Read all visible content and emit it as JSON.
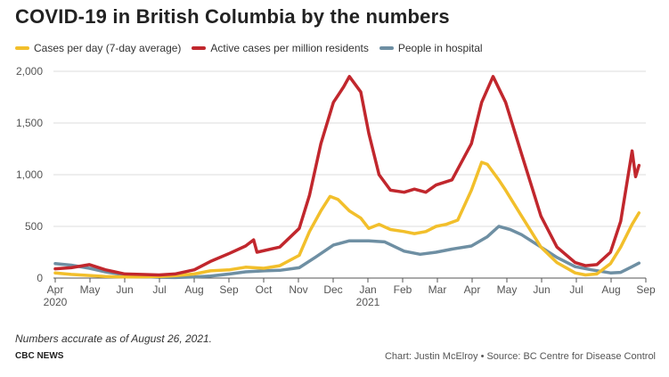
{
  "title": "COVID-19 in British Columbia by the numbers",
  "note": "Numbers accurate as of August 26, 2021.",
  "brand": "CBC NEWS",
  "credit": "Chart: Justin McElroy • Source: BC Centre for Disease Control",
  "colors": {
    "cases": "#f2bf2b",
    "active": "#c1272d",
    "hospital": "#6e8fa3",
    "grid": "#dddddd",
    "axis": "#555555"
  },
  "chart_data": {
    "type": "line",
    "x_tick_labels": [
      "Apr",
      "May",
      "Jun",
      "Jul",
      "Aug",
      "Sep",
      "Oct",
      "Nov",
      "Dec",
      "Jan",
      "Feb",
      "Mar",
      "Apr",
      "May",
      "Jun",
      "Jul",
      "Aug",
      "Sep"
    ],
    "year_labels": [
      {
        "label": "2020",
        "at": "Apr"
      },
      {
        "label": "2021",
        "at": "Jan"
      }
    ],
    "y_tick_labels": [
      "0",
      "500",
      "1,000",
      "1,500",
      "2,000"
    ],
    "ylim": [
      0,
      2000
    ],
    "xlim": [
      "2020-04-01",
      "2021-09-01"
    ],
    "grid": true,
    "legend_position": "top",
    "series": [
      {
        "name": "Cases per day (7-day average)",
        "color": "#f2bf2b",
        "points": [
          [
            "2020-04-01",
            50
          ],
          [
            "2020-04-15",
            35
          ],
          [
            "2020-05-01",
            25
          ],
          [
            "2020-05-15",
            15
          ],
          [
            "2020-06-01",
            10
          ],
          [
            "2020-06-15",
            12
          ],
          [
            "2020-07-01",
            15
          ],
          [
            "2020-07-15",
            22
          ],
          [
            "2020-08-01",
            40
          ],
          [
            "2020-08-15",
            70
          ],
          [
            "2020-09-01",
            80
          ],
          [
            "2020-09-15",
            105
          ],
          [
            "2020-10-01",
            95
          ],
          [
            "2020-10-15",
            120
          ],
          [
            "2020-11-01",
            220
          ],
          [
            "2020-11-10",
            450
          ],
          [
            "2020-11-20",
            650
          ],
          [
            "2020-11-28",
            790
          ],
          [
            "2020-12-05",
            760
          ],
          [
            "2020-12-15",
            650
          ],
          [
            "2020-12-25",
            580
          ],
          [
            "2021-01-01",
            480
          ],
          [
            "2021-01-10",
            520
          ],
          [
            "2021-01-20",
            470
          ],
          [
            "2021-02-01",
            450
          ],
          [
            "2021-02-10",
            430
          ],
          [
            "2021-02-20",
            450
          ],
          [
            "2021-03-01",
            500
          ],
          [
            "2021-03-10",
            520
          ],
          [
            "2021-03-20",
            560
          ],
          [
            "2021-04-01",
            850
          ],
          [
            "2021-04-10",
            1120
          ],
          [
            "2021-04-15",
            1100
          ],
          [
            "2021-04-25",
            950
          ],
          [
            "2021-05-01",
            850
          ],
          [
            "2021-05-15",
            600
          ],
          [
            "2021-06-01",
            300
          ],
          [
            "2021-06-15",
            150
          ],
          [
            "2021-07-01",
            50
          ],
          [
            "2021-07-10",
            30
          ],
          [
            "2021-07-20",
            40
          ],
          [
            "2021-08-01",
            140
          ],
          [
            "2021-08-10",
            300
          ],
          [
            "2021-08-20",
            520
          ],
          [
            "2021-08-26",
            630
          ]
        ]
      },
      {
        "name": "Active cases per million residents",
        "color": "#c1272d",
        "points": [
          [
            "2020-04-01",
            90
          ],
          [
            "2020-04-15",
            100
          ],
          [
            "2020-05-01",
            130
          ],
          [
            "2020-05-15",
            80
          ],
          [
            "2020-06-01",
            40
          ],
          [
            "2020-06-15",
            35
          ],
          [
            "2020-07-01",
            30
          ],
          [
            "2020-07-15",
            40
          ],
          [
            "2020-08-01",
            80
          ],
          [
            "2020-08-15",
            160
          ],
          [
            "2020-09-01",
            240
          ],
          [
            "2020-09-15",
            310
          ],
          [
            "2020-09-22",
            370
          ],
          [
            "2020-09-25",
            250
          ],
          [
            "2020-10-15",
            300
          ],
          [
            "2020-11-01",
            480
          ],
          [
            "2020-11-10",
            800
          ],
          [
            "2020-11-20",
            1300
          ],
          [
            "2020-12-01",
            1700
          ],
          [
            "2020-12-10",
            1850
          ],
          [
            "2020-12-15",
            1950
          ],
          [
            "2020-12-25",
            1800
          ],
          [
            "2021-01-01",
            1400
          ],
          [
            "2021-01-10",
            1000
          ],
          [
            "2021-01-20",
            850
          ],
          [
            "2021-02-01",
            830
          ],
          [
            "2021-02-10",
            860
          ],
          [
            "2021-02-20",
            830
          ],
          [
            "2021-03-01",
            900
          ],
          [
            "2021-03-15",
            950
          ],
          [
            "2021-04-01",
            1300
          ],
          [
            "2021-04-10",
            1700
          ],
          [
            "2021-04-20",
            1950
          ],
          [
            "2021-05-01",
            1700
          ],
          [
            "2021-05-15",
            1200
          ],
          [
            "2021-06-01",
            600
          ],
          [
            "2021-06-15",
            300
          ],
          [
            "2021-07-01",
            150
          ],
          [
            "2021-07-10",
            120
          ],
          [
            "2021-07-20",
            130
          ],
          [
            "2021-08-01",
            250
          ],
          [
            "2021-08-10",
            550
          ],
          [
            "2021-08-20",
            1230
          ],
          [
            "2021-08-23",
            980
          ],
          [
            "2021-08-26",
            1090
          ]
        ]
      },
      {
        "name": "People in hospital",
        "color": "#6e8fa3",
        "points": [
          [
            "2020-04-01",
            140
          ],
          [
            "2020-04-15",
            125
          ],
          [
            "2020-05-01",
            95
          ],
          [
            "2020-05-15",
            60
          ],
          [
            "2020-06-01",
            30
          ],
          [
            "2020-06-15",
            15
          ],
          [
            "2020-07-01",
            8
          ],
          [
            "2020-07-15",
            5
          ],
          [
            "2020-08-01",
            10
          ],
          [
            "2020-08-15",
            20
          ],
          [
            "2020-09-01",
            40
          ],
          [
            "2020-09-15",
            60
          ],
          [
            "2020-10-01",
            70
          ],
          [
            "2020-10-15",
            75
          ],
          [
            "2020-11-01",
            100
          ],
          [
            "2020-11-15",
            200
          ],
          [
            "2020-12-01",
            320
          ],
          [
            "2020-12-15",
            360
          ],
          [
            "2021-01-01",
            360
          ],
          [
            "2021-01-15",
            350
          ],
          [
            "2021-02-01",
            260
          ],
          [
            "2021-02-15",
            230
          ],
          [
            "2021-03-01",
            250
          ],
          [
            "2021-03-15",
            280
          ],
          [
            "2021-04-01",
            310
          ],
          [
            "2021-04-15",
            400
          ],
          [
            "2021-04-25",
            500
          ],
          [
            "2021-05-05",
            470
          ],
          [
            "2021-05-15",
            420
          ],
          [
            "2021-06-01",
            300
          ],
          [
            "2021-06-15",
            200
          ],
          [
            "2021-07-01",
            110
          ],
          [
            "2021-07-15",
            80
          ],
          [
            "2021-08-01",
            50
          ],
          [
            "2021-08-10",
            55
          ],
          [
            "2021-08-20",
            110
          ],
          [
            "2021-08-26",
            145
          ]
        ]
      }
    ]
  }
}
